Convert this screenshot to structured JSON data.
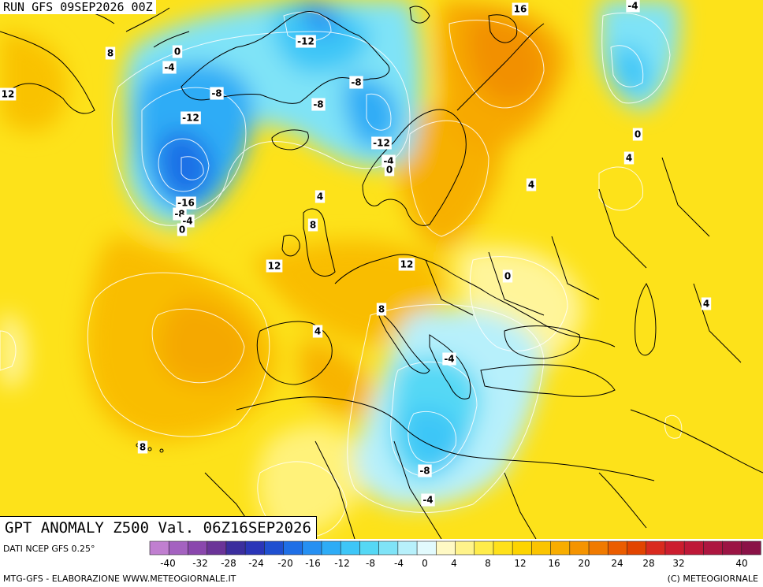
{
  "header": {
    "run_title": "RUN GFS 09SEP2026 00Z"
  },
  "map_title": "GPT ANOMALY Z500 Val. 06Z16SEP2026",
  "footer": {
    "source": "DATI NCEP GFS 0.25°",
    "credit_left": "MTG-GFS - ELABORAZIONE WWW.METEOGIORNALE.IT",
    "credit_right": "(C) METEOGIORNALE"
  },
  "colorbar": {
    "colors": [
      "#c07fd0",
      "#a462c0",
      "#8a47ad",
      "#6b3498",
      "#3b2e9e",
      "#2a35b8",
      "#1f4fd0",
      "#1f6fe6",
      "#2690f2",
      "#2eacf6",
      "#3ec6f7",
      "#55d8f5",
      "#7fe3f7",
      "#b7f0fb",
      "#e2fafd",
      "#fff9c4",
      "#fff38a",
      "#ffec4a",
      "#ffe11a",
      "#fdd400",
      "#fbc400",
      "#f8ad00",
      "#f59400",
      "#f07a00",
      "#eb5d00",
      "#e24400",
      "#d92a1f",
      "#cc1d2f",
      "#be1838",
      "#ad1640",
      "#9b1444",
      "#8a1247"
    ],
    "tick_labels": [
      "-40",
      "-32",
      "-28",
      "-24",
      "-20",
      "-16",
      "-12",
      "-8",
      "-4",
      "0",
      "4",
      "8",
      "12",
      "16",
      "20",
      "24",
      "28",
      "32",
      "40"
    ]
  },
  "contour_labels": [
    {
      "text": "8"
    },
    {
      "text": "0"
    },
    {
      "text": "-4"
    },
    {
      "text": "12"
    },
    {
      "text": "-8"
    },
    {
      "text": "-12"
    },
    {
      "text": "-12"
    },
    {
      "text": "-8"
    },
    {
      "text": "-8"
    },
    {
      "text": "-12"
    },
    {
      "text": "-4"
    },
    {
      "text": "0"
    },
    {
      "text": "-16"
    },
    {
      "text": "-8"
    },
    {
      "text": "-4"
    },
    {
      "text": "0"
    },
    {
      "text": "4"
    },
    {
      "text": "8"
    },
    {
      "text": "12"
    },
    {
      "text": "12"
    },
    {
      "text": "8"
    },
    {
      "text": "4"
    },
    {
      "text": "0"
    },
    {
      "text": "-4"
    },
    {
      "text": "-8"
    },
    {
      "text": "-4"
    },
    {
      "text": "8"
    },
    {
      "text": "16"
    },
    {
      "text": "-4"
    },
    {
      "text": "0"
    },
    {
      "text": "4"
    },
    {
      "text": "4"
    },
    {
      "text": "4"
    }
  ]
}
